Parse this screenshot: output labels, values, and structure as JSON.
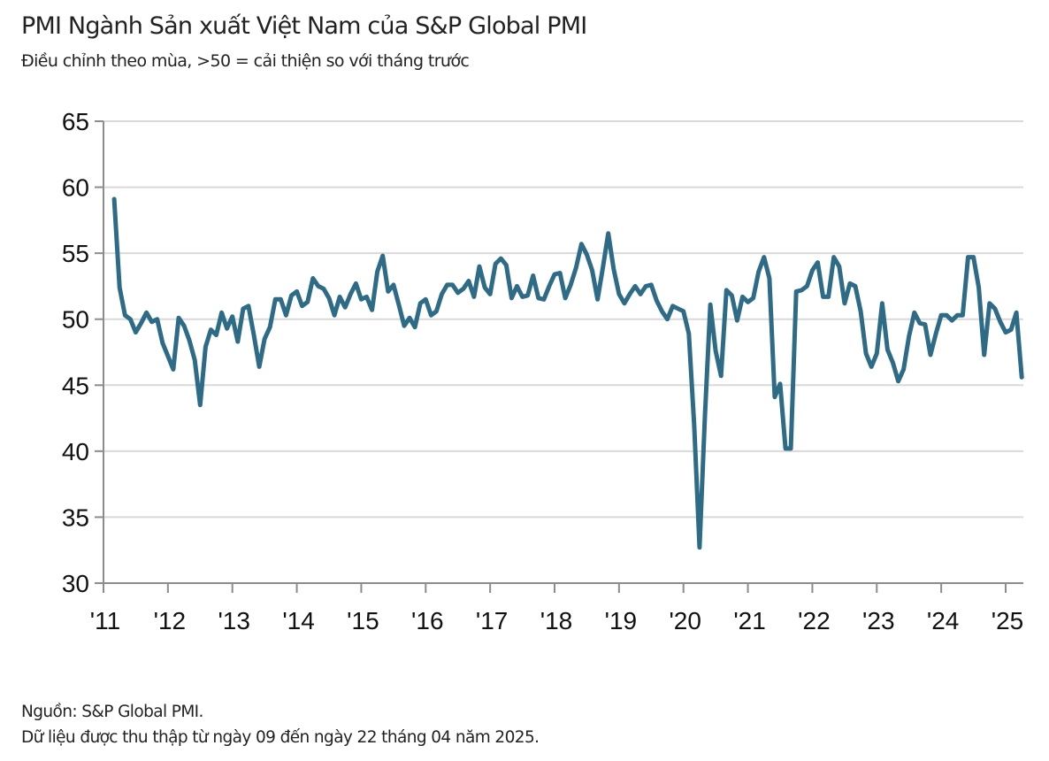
{
  "header": {
    "title": "PMI Ngành Sản xuất Việt Nam của S&P Global PMI",
    "subtitle": "Điều chỉnh theo mùa, >50 = cải thiện so với tháng trước"
  },
  "footer": {
    "source": "Nguồn: S&P Global PMI.",
    "note": "Dữ liệu được thu thập từ ngày 09 đến ngày 22 tháng 04 năm 2025."
  },
  "colors": {
    "line": "#2e6b86",
    "grid": "#d9d9d9",
    "axis": "#8c8c8c"
  },
  "chart_data": {
    "type": "line",
    "title": "PMI Ngành Sản xuất Việt Nam của S&P Global PMI",
    "subtitle": "Điều chỉnh theo mùa, >50 = cải thiện so với tháng trước",
    "xlabel": "",
    "ylabel": "",
    "ylim": [
      30,
      65
    ],
    "yticks": [
      30,
      35,
      40,
      45,
      50,
      55,
      60,
      65
    ],
    "ytick_labels": [
      "30",
      "35",
      "40",
      "45",
      "50",
      "55",
      "60",
      "65"
    ],
    "xticks": [
      "'11",
      "'12",
      "'13",
      "'14",
      "'15",
      "'16",
      "'17",
      "'18",
      "'19",
      "'20",
      "'21",
      "'22",
      "'23",
      "'24",
      "'25"
    ],
    "grid": true,
    "legend": "none",
    "series": [
      {
        "name": "PMI Ngành Sản xuất Việt Nam",
        "start": "2011-03",
        "frequency": "monthly",
        "values": [
          59.1,
          52.4,
          50.3,
          50.0,
          49.0,
          49.7,
          50.5,
          49.8,
          50.0,
          48.2,
          47.2,
          46.2,
          50.1,
          49.5,
          48.4,
          46.9,
          43.5,
          47.9,
          49.2,
          48.8,
          50.5,
          49.3,
          50.2,
          48.3,
          50.8,
          51.0,
          48.8,
          46.4,
          48.5,
          49.4,
          51.5,
          51.5,
          50.3,
          51.8,
          52.1,
          51.0,
          51.3,
          53.1,
          52.5,
          52.3,
          51.6,
          50.3,
          51.7,
          50.9,
          51.9,
          52.7,
          51.5,
          51.7,
          50.7,
          53.6,
          54.8,
          52.1,
          52.6,
          51.1,
          49.5,
          50.1,
          49.4,
          51.2,
          51.5,
          50.3,
          50.6,
          51.9,
          52.6,
          52.6,
          52.0,
          52.3,
          52.9,
          51.7,
          54.0,
          52.4,
          51.9,
          54.2,
          54.6,
          54.1,
          51.6,
          52.5,
          51.7,
          51.8,
          53.3,
          51.6,
          51.5,
          52.5,
          53.4,
          53.5,
          51.6,
          52.6,
          53.9,
          55.7,
          54.9,
          53.7,
          51.5,
          53.9,
          56.5,
          53.8,
          51.9,
          51.2,
          51.9,
          52.5,
          51.9,
          52.5,
          52.6,
          51.4,
          50.6,
          50.0,
          51.0,
          50.8,
          50.6,
          48.9,
          41.9,
          32.7,
          42.7,
          51.1,
          47.6,
          45.7,
          52.2,
          51.8,
          49.9,
          51.7,
          51.3,
          51.6,
          53.6,
          54.7,
          53.1,
          44.1,
          45.1,
          40.2,
          40.2,
          52.1,
          52.2,
          52.5,
          53.7,
          54.3,
          51.7,
          51.7,
          54.7,
          54.0,
          51.2,
          52.7,
          52.5,
          50.6,
          47.4,
          46.4,
          47.4,
          51.2,
          47.7,
          46.7,
          45.3,
          46.2,
          48.7,
          50.5,
          49.7,
          49.6,
          47.3,
          48.9,
          50.3,
          50.3,
          49.9,
          50.3,
          50.3,
          54.7,
          54.7,
          52.4,
          47.3,
          51.2,
          50.8,
          49.8,
          49.0,
          49.2,
          50.5,
          45.6
        ]
      }
    ]
  }
}
